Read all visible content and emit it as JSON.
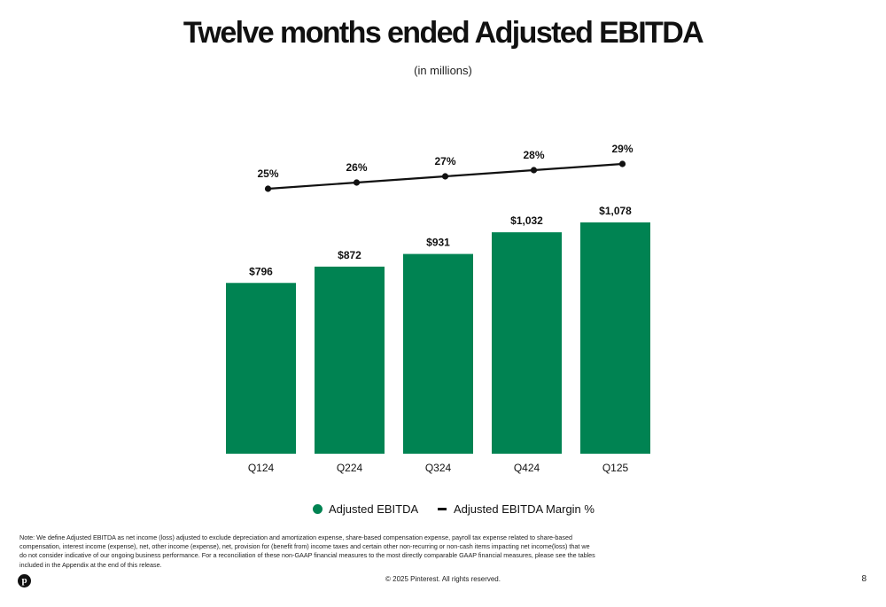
{
  "header": {
    "title": "Twelve months ended Adjusted EBITDA",
    "subtitle": "(in millions)"
  },
  "chart_data": {
    "type": "bar",
    "categories": [
      "Q124",
      "Q224",
      "Q324",
      "Q424",
      "Q125"
    ],
    "series": [
      {
        "name": "Adjusted EBITDA",
        "type": "bar",
        "values": [
          796,
          872,
          931,
          1032,
          1078
        ],
        "labels": [
          "$796",
          "$872",
          "$931",
          "$1,032",
          "$1,078"
        ],
        "color": "#008352"
      },
      {
        "name": "Adjusted EBITDA Margin %",
        "type": "line",
        "values": [
          25,
          26,
          27,
          28,
          29
        ],
        "labels": [
          "25%",
          "26%",
          "27%",
          "28%",
          "29%"
        ],
        "color": "#111111"
      }
    ],
    "ylim": [
      0,
      1078
    ],
    "grid": false,
    "legend_position": "bottom-center"
  },
  "legend": {
    "bar_label": "Adjusted EBITDA",
    "line_label": "Adjusted EBITDA Margin %"
  },
  "note": "Note: We define Adjusted EBITDA as net income (loss) adjusted to exclude depreciation and amortization expense, share-based compensation expense, payroll tax expense related to share-based compensation, interest income (expense), net, other income (expense), net, provision for (benefit from) income taxes and certain other non-recurring or non-cash items impacting net income(loss) that we do not consider indicative of our ongoing business performance. For a reconciliation of these non-GAAP financial measures to the most directly comparable GAAP financial measures, please see the tables included in the Appendix at the end of this release.",
  "footer": {
    "copyright": "© 2025 Pinterest. All rights reserved.",
    "page_number": "8",
    "logo_letter": "p"
  }
}
